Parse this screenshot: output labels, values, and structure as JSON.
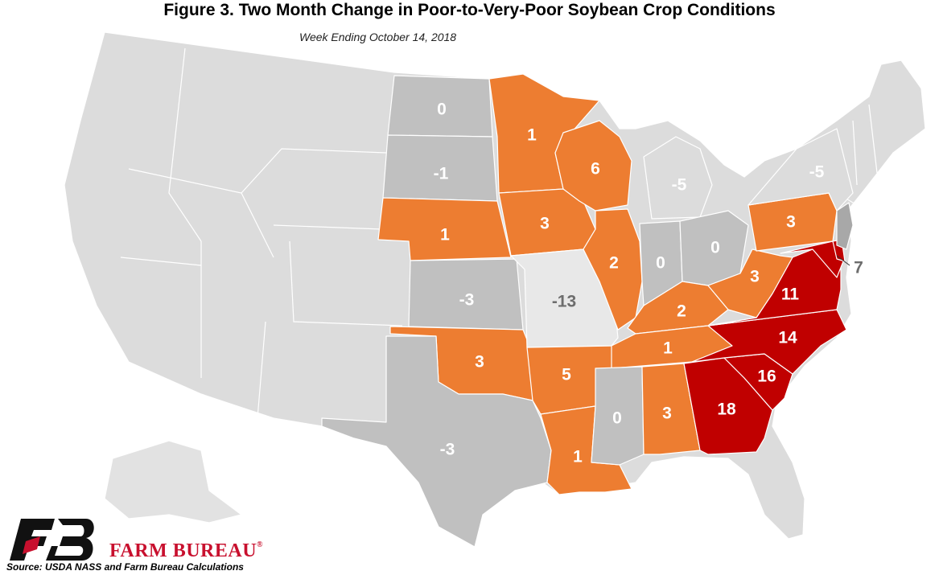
{
  "title": "Figure 3. Two Month Change in Poor-to-Very-Poor Soybean Crop Conditions",
  "subtitle": "Week Ending October 14, 2018",
  "source": "Source: USDA NASS and Farm Bureau Calculations",
  "brand": {
    "name": "FARM BUREAU",
    "registered": "®",
    "icon": "farm-bureau-fb-logo"
  },
  "colors": {
    "none": "#dcdcdc",
    "gray": "#c0c0c0",
    "light": "#e8e8e8",
    "orange": "#ed7d31",
    "red": "#c00000",
    "label_white": "#ffffff",
    "label_gray": "#6d6d6d"
  },
  "states": {
    "ND": "0",
    "SD": "-1",
    "NE": "1",
    "KS": "-3",
    "OK": "3",
    "TX": "-3",
    "MN": "1",
    "IA": "3",
    "MO": "-13",
    "AR": "5",
    "LA": "1",
    "WI": "6",
    "IL": "2",
    "MI": "-5",
    "IN": "0",
    "OH": "0",
    "KY": "2",
    "TN": "1",
    "MS": "0",
    "AL": "3",
    "GA": "18",
    "SC": "16",
    "NC": "14",
    "VA": "11",
    "WV": "3",
    "PA": "3",
    "NY": "-5",
    "DE": "7"
  }
}
